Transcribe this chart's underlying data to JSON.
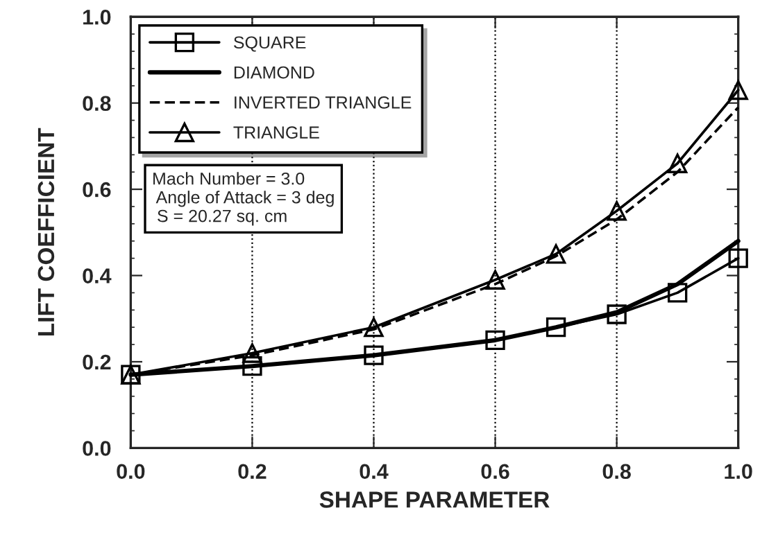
{
  "chart_data": {
    "type": "line",
    "xlabel": "SHAPE PARAMETER",
    "ylabel": "LIFT COEFFICIENT",
    "x": [
      0.0,
      0.2,
      0.4,
      0.6,
      0.7,
      0.8,
      0.9,
      1.0
    ],
    "series": [
      {
        "name": "SQUARE",
        "color": "#000000",
        "marker": "square",
        "line_style": "solid",
        "values": [
          0.17,
          0.19,
          0.215,
          0.25,
          0.28,
          0.31,
          0.36,
          0.44
        ]
      },
      {
        "name": "DIAMOND",
        "color": "#000000",
        "marker": "none",
        "line_style": "solid",
        "values": [
          0.17,
          0.19,
          0.215,
          0.25,
          0.28,
          0.315,
          0.38,
          0.48
        ]
      },
      {
        "name": "INVERTED TRIANGLE",
        "color": "#000000",
        "marker": "none",
        "line_style": "dashed",
        "values": [
          0.17,
          0.215,
          0.275,
          0.38,
          0.445,
          0.53,
          0.64,
          0.79
        ]
      },
      {
        "name": "TRIANGLE",
        "color": "#000000",
        "marker": "triangle",
        "line_style": "solid",
        "values": [
          0.17,
          0.22,
          0.28,
          0.39,
          0.45,
          0.55,
          0.66,
          0.83
        ]
      }
    ],
    "xlim": [
      0.0,
      1.0
    ],
    "ylim": [
      0.0,
      1.0
    ],
    "xticks": [
      {
        "value": 0.0,
        "label": "0.0"
      },
      {
        "value": 0.2,
        "label": "0.2"
      },
      {
        "value": 0.4,
        "label": "0.4"
      },
      {
        "value": 0.6,
        "label": "0.6"
      },
      {
        "value": 0.8,
        "label": "0.8"
      },
      {
        "value": 1.0,
        "label": "1.0"
      }
    ],
    "yticks": [
      {
        "value": 0.0,
        "label": "0.0"
      },
      {
        "value": 0.2,
        "label": "0.2"
      },
      {
        "value": 0.4,
        "label": "0.4"
      },
      {
        "value": 0.6,
        "label": "0.6"
      },
      {
        "value": 0.8,
        "label": "0.8"
      },
      {
        "value": 1.0,
        "label": "1.0"
      }
    ],
    "grid": "x",
    "legend": "top left",
    "annotations": [
      "Mach Number = 3.0\n Angle of Attack = 3 deg\n S = 20.27 sq. cm"
    ]
  }
}
